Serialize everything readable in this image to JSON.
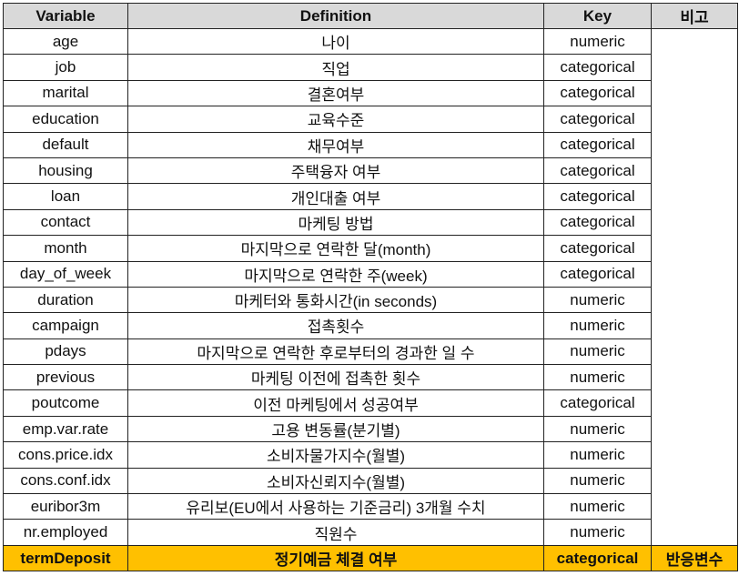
{
  "headers": [
    "Variable",
    "Definition",
    "Key",
    "비고"
  ],
  "rows": [
    {
      "variable": "age",
      "definition": "나이",
      "key": "numeric"
    },
    {
      "variable": "job",
      "definition": "직업",
      "key": "categorical"
    },
    {
      "variable": "marital",
      "definition": "결혼여부",
      "key": "categorical"
    },
    {
      "variable": "education",
      "definition": "교육수준",
      "key": "categorical"
    },
    {
      "variable": "default",
      "definition": "채무여부",
      "key": "categorical"
    },
    {
      "variable": "housing",
      "definition": "주택융자 여부",
      "key": "categorical"
    },
    {
      "variable": "loan",
      "definition": "개인대출 여부",
      "key": "categorical"
    },
    {
      "variable": "contact",
      "definition": "마케팅 방법",
      "key": "categorical"
    },
    {
      "variable": "month",
      "definition": "마지막으로 연락한 달(month)",
      "key": "categorical"
    },
    {
      "variable": "day_of_week",
      "definition": "마지막으로 연락한 주(week)",
      "key": "categorical"
    },
    {
      "variable": "duration",
      "definition": "마케터와 통화시간(in seconds)",
      "key": "numeric"
    },
    {
      "variable": "campaign",
      "definition": "접촉횟수",
      "key": "numeric"
    },
    {
      "variable": "pdays",
      "definition": "마지막으로 연락한 후로부터의 경과한 일 수",
      "key": "numeric"
    },
    {
      "variable": "previous",
      "definition": "마케팅 이전에 접촉한 횟수",
      "key": "numeric"
    },
    {
      "variable": "poutcome",
      "definition": "이전 마케팅에서 성공여부",
      "key": "categorical"
    },
    {
      "variable": "emp.var.rate",
      "definition": "고용 변동률(분기별)",
      "key": "numeric"
    },
    {
      "variable": "cons.price.idx",
      "definition": "소비자물가지수(월별)",
      "key": "numeric"
    },
    {
      "variable": "cons.conf.idx",
      "definition": "소비자신뢰지수(월별)",
      "key": "numeric"
    },
    {
      "variable": "euribor3m",
      "definition": "유리보(EU에서 사용하는 기준금리) 3개월 수치",
      "key": "numeric"
    },
    {
      "variable": "nr.employed",
      "definition": "직원수",
      "key": "numeric"
    }
  ],
  "response_row": {
    "variable": "termDeposit",
    "definition": "정기예금 체결 여부",
    "key": "categorical",
    "note": "반응변수"
  },
  "colors": {
    "header_bg": "#d9d9d9",
    "response_bg": "#ffc000",
    "border": "#222222"
  }
}
